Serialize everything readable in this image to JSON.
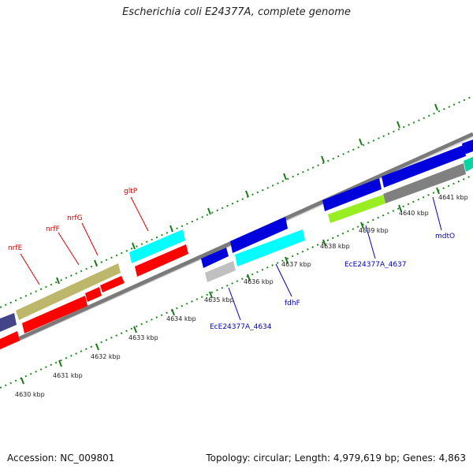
{
  "title": "Escherichia coli E24377A, complete genome",
  "footer": {
    "accession": "Accession: NC_009801",
    "topology": "Topology: circular; Length: 4,979,619 bp; Genes: 4,863"
  },
  "colors": {
    "backbone": "#888888",
    "tick": "#1a7a1a",
    "red_feature": "#ff0000",
    "blue_feature": "#0000dd",
    "cyan_feature": "#00ffff",
    "khaki_feature": "#bdb76b",
    "grey_feature": "#808080",
    "lightgrey_feature": "#c0c0c0",
    "lime_feature": "#99ee22",
    "navy_feature": "#444488",
    "teal_feature": "#00d7a0",
    "label_red": "#cc0000",
    "label_blue": "#0000bb"
  },
  "kbp_labels": [
    "4630 kbp",
    "4631 kbp",
    "4632 kbp",
    "4633 kbp",
    "4634 kbp",
    "4635 kbp",
    "4636 kbp",
    "4637 kbp",
    "4638 kbp",
    "4639 kbp",
    "4640 kbp",
    "4641 kbp"
  ],
  "gene_labels": {
    "red": [
      "nrfE",
      "nrfF",
      "nrfG",
      "gltP"
    ],
    "blue": [
      "EcE24377A_4634",
      "fdhF",
      "EcE24377A_4637",
      "mdtO"
    ]
  }
}
